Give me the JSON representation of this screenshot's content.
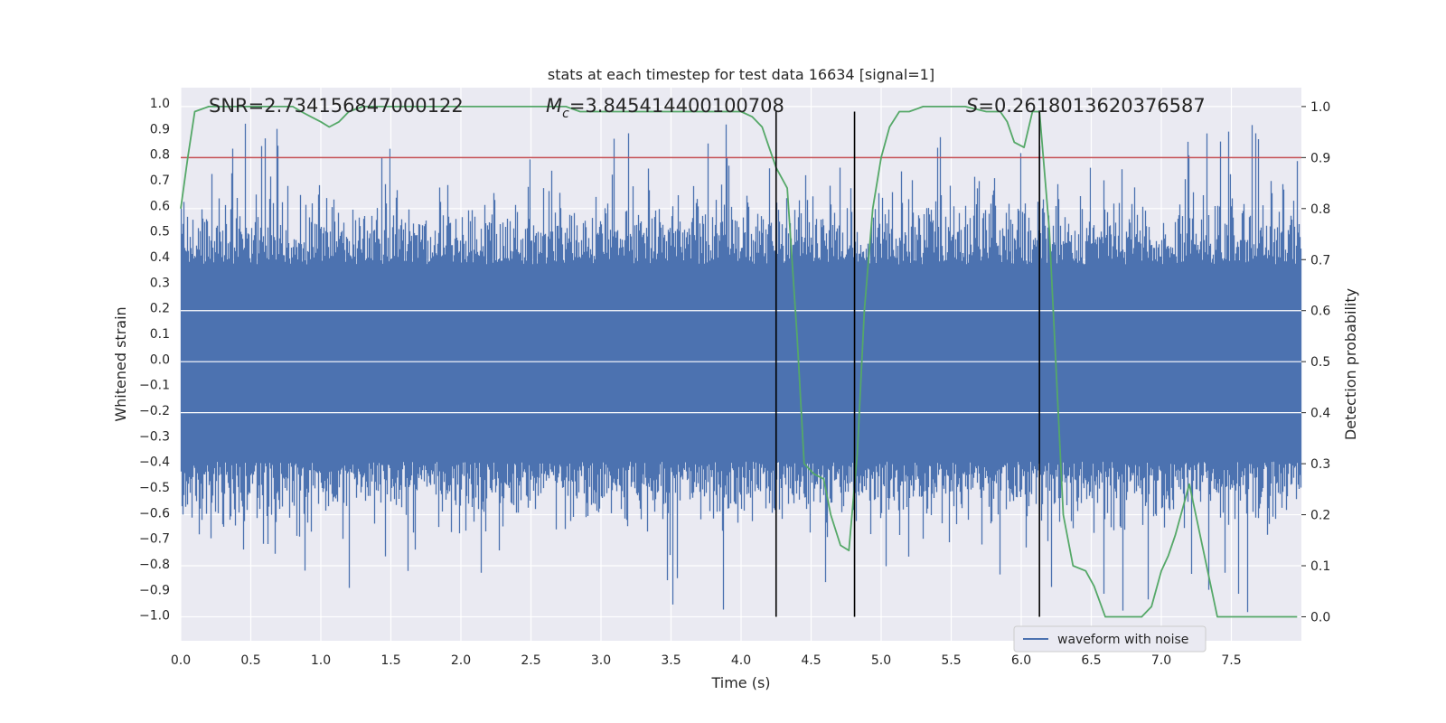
{
  "chart_data": {
    "type": "line",
    "title": "stats at each timestep for test data 16634 [signal=1]",
    "xlabel": "Time (s)",
    "ylabel": "Whitened strain",
    "y2label": "Detection probability",
    "xlim": [
      0.0,
      8.0
    ],
    "ylim": [
      -1.1,
      1.06
    ],
    "y2lim": [
      -0.047,
      1.037
    ],
    "x_ticks": [
      0.0,
      0.5,
      1.0,
      1.5,
      2.0,
      2.5,
      3.0,
      3.5,
      4.0,
      4.5,
      5.0,
      5.5,
      6.0,
      6.5,
      7.0,
      7.5
    ],
    "x_tick_labels": [
      "0.0",
      "0.5",
      "1.0",
      "1.5",
      "2.0",
      "2.5",
      "3.0",
      "3.5",
      "4.0",
      "4.5",
      "5.0",
      "5.5",
      "6.0",
      "6.5",
      "7.0",
      "7.5"
    ],
    "y_ticks": [
      1.0,
      0.9,
      0.8,
      0.7,
      0.6,
      0.5,
      0.4,
      0.3,
      0.2,
      0.1,
      0.0,
      -0.1,
      -0.2,
      -0.3,
      -0.4,
      -0.5,
      -0.6,
      -0.7,
      -0.8,
      -0.9,
      -1.0
    ],
    "y_tick_labels": [
      "1.0",
      "0.9",
      "0.8",
      "0.7",
      "0.6",
      "0.5",
      "0.4",
      "0.3",
      "0.2",
      "0.1",
      "0.0",
      "−0.1",
      "−0.2",
      "−0.3",
      "−0.4",
      "−0.5",
      "−0.6",
      "−0.7",
      "−0.8",
      "−0.9",
      "−1.0"
    ],
    "y2_ticks": [
      1.0,
      0.9,
      0.8,
      0.7,
      0.6,
      0.5,
      0.4,
      0.3,
      0.2,
      0.1,
      0.0
    ],
    "y2_tick_labels": [
      "1.0",
      "0.9",
      "0.8",
      "0.7",
      "0.6",
      "0.5",
      "0.4",
      "0.3",
      "0.2",
      "0.1",
      "0.0"
    ],
    "grid": true,
    "legend": {
      "placement": "bottom-right",
      "entries": [
        "waveform with noise"
      ]
    },
    "annotations": {
      "snr": "SNR=2.734156847000122",
      "mc_symbol": "M",
      "mc_sub": "c",
      "mc_value": "=3.845414400100708",
      "s_symbol": "S",
      "s_value": "=0.2618013620376587"
    },
    "threshold_y2": 0.9,
    "vlines_x": [
      4.25,
      4.81,
      6.13
    ],
    "vline_y2_range": [
      0.0,
      0.99
    ],
    "series": [
      {
        "name": "waveform with noise",
        "axis": "left",
        "kind": "noise",
        "samples": 8000,
        "typical_range": [
          -0.4,
          0.37
        ],
        "peak_max": 0.92,
        "peak_min": -0.99,
        "color": "#4c72b0"
      },
      {
        "axis": "right",
        "kind": "probability",
        "color": "#55a868",
        "x": [
          0.0,
          0.05,
          0.1,
          0.2,
          0.4,
          0.6,
          0.8,
          0.86,
          0.93,
          1.0,
          1.06,
          1.13,
          1.2,
          1.3,
          1.5,
          2.0,
          2.5,
          2.75,
          2.85,
          3.0,
          3.2,
          3.4,
          3.6,
          3.8,
          4.0,
          4.08,
          4.15,
          4.2,
          4.25,
          4.33,
          4.4,
          4.45,
          4.52,
          4.59,
          4.64,
          4.71,
          4.77,
          4.83,
          4.88,
          4.94,
          5.0,
          5.06,
          5.13,
          5.2,
          5.3,
          5.45,
          5.6,
          5.75,
          5.85,
          5.9,
          5.95,
          6.02,
          6.08,
          6.13,
          6.2,
          6.3,
          6.37,
          6.46,
          6.52,
          6.6,
          6.73,
          6.8,
          6.86,
          6.93,
          7.0,
          7.05,
          7.1,
          7.2,
          7.4,
          7.8,
          7.97
        ],
        "y": [
          0.8,
          0.9,
          0.99,
          1.0,
          1.0,
          1.0,
          1.0,
          0.99,
          0.98,
          0.97,
          0.96,
          0.97,
          0.99,
          1.0,
          1.0,
          1.0,
          1.0,
          1.0,
          0.99,
          0.99,
          0.99,
          0.99,
          0.99,
          0.99,
          0.99,
          0.98,
          0.96,
          0.92,
          0.88,
          0.84,
          0.55,
          0.3,
          0.28,
          0.27,
          0.2,
          0.14,
          0.13,
          0.32,
          0.6,
          0.8,
          0.9,
          0.96,
          0.99,
          0.99,
          1.0,
          1.0,
          1.0,
          0.99,
          0.99,
          0.97,
          0.93,
          0.92,
          0.99,
          0.99,
          0.76,
          0.2,
          0.1,
          0.09,
          0.06,
          0.0,
          0.0,
          0.0,
          0.0,
          0.02,
          0.09,
          0.12,
          0.16,
          0.26,
          0.0,
          0.0,
          0.0
        ]
      }
    ]
  }
}
